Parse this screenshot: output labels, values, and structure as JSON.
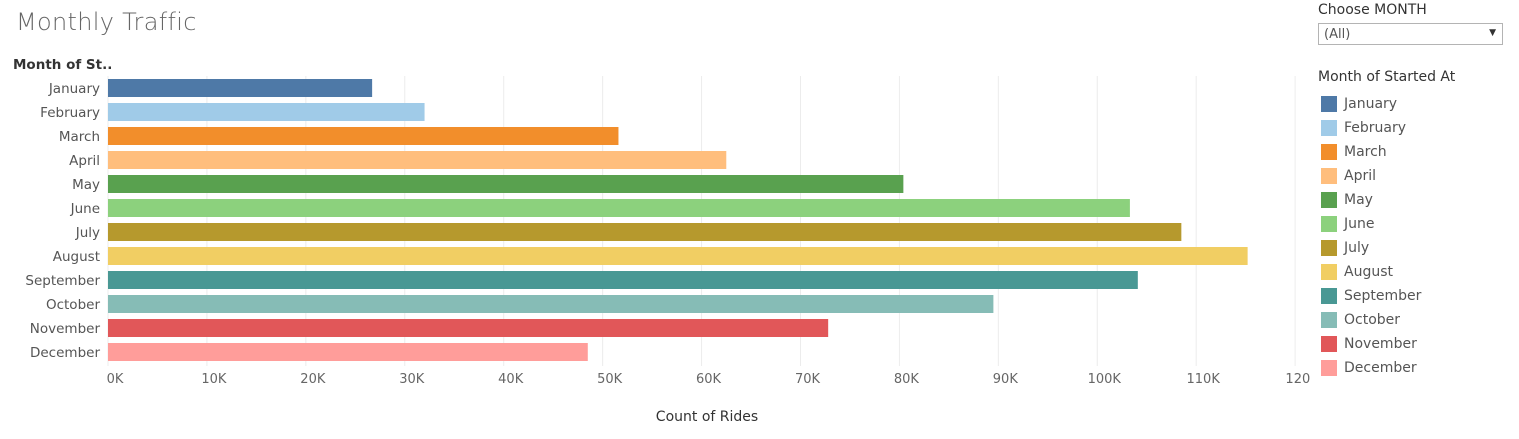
{
  "title": "Monthly Traffic",
  "filter": {
    "title": "Choose MONTH",
    "value": "(All)"
  },
  "legend": {
    "title": "Month of Started At"
  },
  "chart_data": {
    "type": "bar",
    "orientation": "horizontal",
    "dimension_header": "Month of St..",
    "categories": [
      "January",
      "February",
      "March",
      "April",
      "May",
      "June",
      "July",
      "August",
      "September",
      "October",
      "November",
      "December"
    ],
    "values": [
      26700,
      32000,
      51600,
      62500,
      80400,
      103300,
      108500,
      115200,
      104100,
      89500,
      72800,
      48500
    ],
    "colors": [
      "#4e79a7",
      "#a0cbe8",
      "#f28e2b",
      "#ffbe7d",
      "#59a14f",
      "#8cd17d",
      "#b6992d",
      "#f1ce63",
      "#499894",
      "#86bcb6",
      "#e15759",
      "#ff9d9a"
    ],
    "xlabel": "Count of Rides",
    "xlim": [
      0,
      121000
    ],
    "xticks": [
      0,
      10000,
      20000,
      30000,
      40000,
      50000,
      60000,
      70000,
      80000,
      90000,
      100000,
      110000,
      120000
    ],
    "xtick_labels": [
      "0K",
      "10K",
      "20K",
      "30K",
      "40K",
      "50K",
      "60K",
      "70K",
      "80K",
      "90K",
      "100K",
      "110K",
      "120K"
    ],
    "grid": true,
    "legend_position": "right"
  }
}
